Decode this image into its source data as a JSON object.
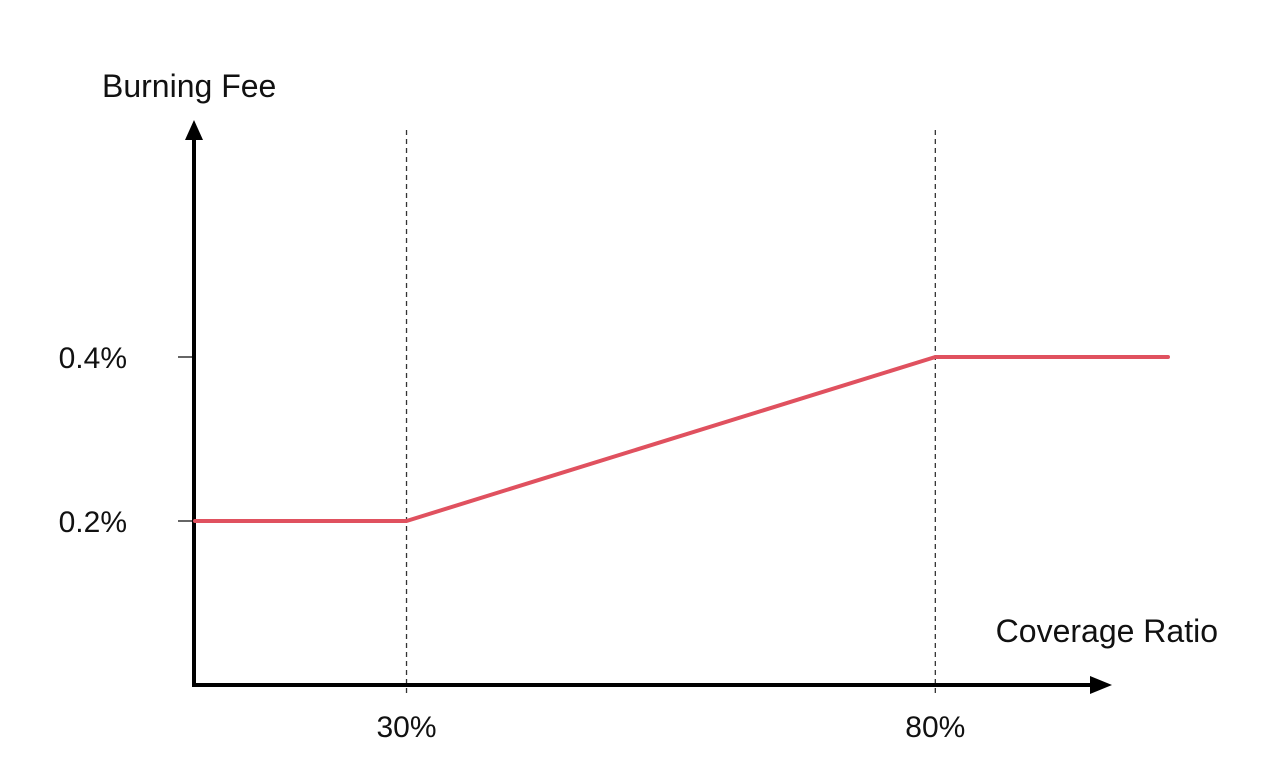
{
  "chart_data": {
    "type": "line",
    "ylabel": "Burning Fee",
    "xlabel": "Coverage Ratio",
    "x_ticks": [
      "30%",
      "80%"
    ],
    "y_ticks": [
      "0.2%",
      "0.4%"
    ],
    "series": [
      {
        "points": [
          {
            "x": 10,
            "y": 0.2
          },
          {
            "x": 30,
            "y": 0.2
          },
          {
            "x": 80,
            "y": 0.4
          },
          {
            "x": 102,
            "y": 0.4
          }
        ]
      }
    ],
    "reference_lines_x": [
      30,
      80
    ],
    "line_color": "#e0515f",
    "axis_color": "#000000",
    "grid": false
  }
}
